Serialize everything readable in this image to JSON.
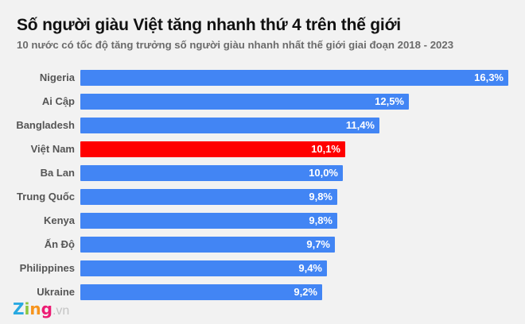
{
  "title": "Số người giàu Việt tăng nhanh thứ 4 trên thế giới",
  "subtitle": "10 nước có tốc độ tăng trưởng số người giàu nhanh nhất thế giới giai đoạn 2018 - 2023",
  "colors": {
    "bar": "#4285f4",
    "highlight": "#ff0000",
    "background": "#f2f2f2"
  },
  "logo": {
    "z": "Z",
    "i": "i",
    "n": "n",
    "g": "g",
    "suffix": ".vn"
  },
  "chart_data": {
    "type": "bar",
    "orientation": "horizontal",
    "title": "Số người giàu Việt tăng nhanh thứ 4 trên thế giới",
    "subtitle": "10 nước có tốc độ tăng trưởng số người giàu nhanh nhất thế giới giai đoạn 2018 - 2023",
    "xlabel": "",
    "ylabel": "",
    "unit": "%",
    "grid": false,
    "legend": null,
    "highlight": "Việt Nam",
    "categories": [
      "Nigeria",
      "Ai Cập",
      "Bangladesh",
      "Việt Nam",
      "Ba Lan",
      "Trung Quốc",
      "Kenya",
      "Ấn Độ",
      "Philippines",
      "Ukraine"
    ],
    "values": [
      16.3,
      12.5,
      11.4,
      10.1,
      10.0,
      9.8,
      9.8,
      9.7,
      9.4,
      9.2
    ],
    "value_labels": [
      "16,3%",
      "12,5%",
      "11,4%",
      "10,1%",
      "10,0%",
      "9,8%",
      "9,8%",
      "9,7%",
      "9,4%",
      "9,2%"
    ]
  }
}
